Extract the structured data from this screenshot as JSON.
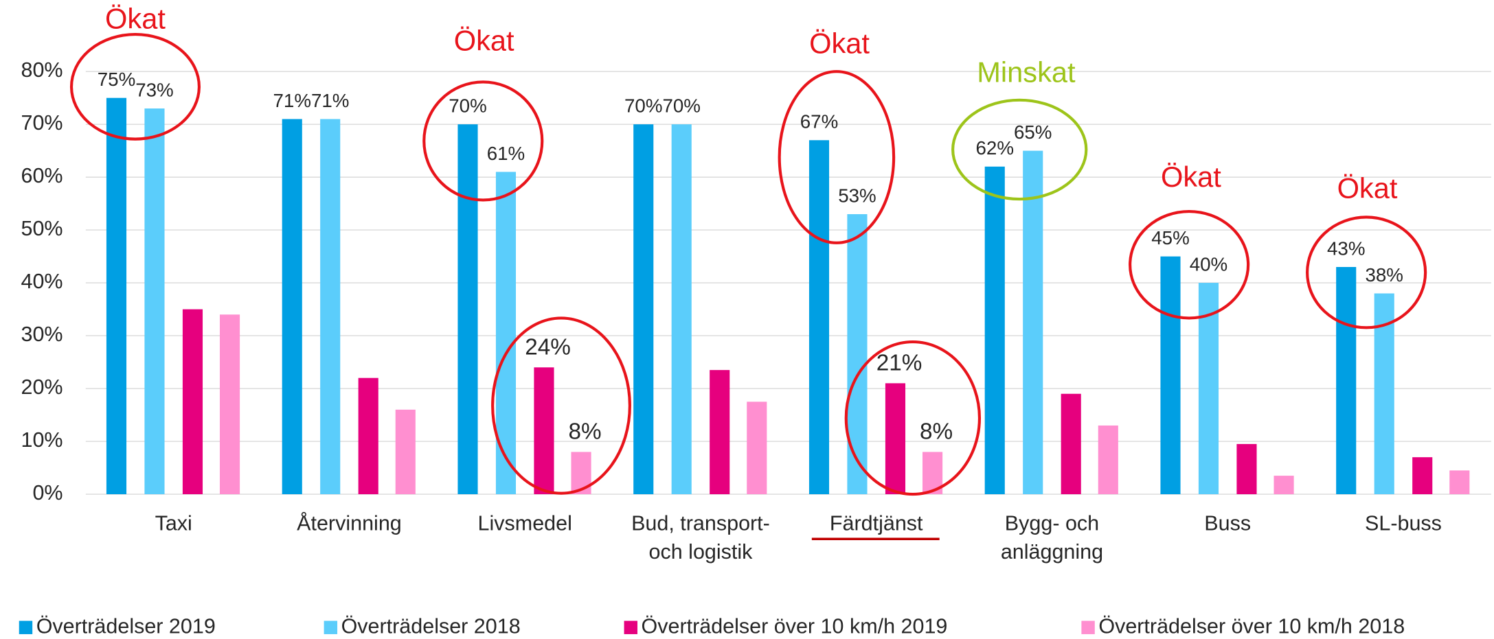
{
  "chart_data": {
    "type": "bar",
    "categories": [
      "Taxi",
      "Återvinning",
      "Livsmedel",
      "Bud, transport-\noch logistik",
      "Färdtjänst",
      "Bygg- och\nanläggning",
      "Buss",
      "SL-buss"
    ],
    "series": [
      {
        "name": "Överträdelser 2019",
        "color": "#009fe3",
        "values": [
          75,
          71,
          70,
          70,
          67,
          62,
          45,
          43
        ],
        "value_labels": [
          "75%",
          "71%",
          "70%",
          "70%",
          "67%",
          "62%",
          "45%",
          "43%"
        ]
      },
      {
        "name": "Överträdelser 2018",
        "color": "#5bcdfb",
        "values": [
          73,
          71,
          61,
          70,
          53,
          65,
          40,
          38
        ],
        "value_labels": [
          "73%",
          "71%",
          "61%",
          "70%",
          "53%",
          "65%",
          "40%",
          "38%"
        ]
      },
      {
        "name": "Överträdelser över 10 km/h 2019",
        "color": "#e6007e",
        "values": [
          35,
          22,
          24,
          23.5,
          21,
          19,
          9.5,
          7
        ],
        "value_labels": [
          null,
          null,
          "24%",
          null,
          "21%",
          null,
          null,
          null
        ]
      },
      {
        "name": "Överträdelser över 10 km/h 2018",
        "color": "#ff8fd0",
        "values": [
          34,
          16,
          8,
          17.5,
          8,
          13,
          3.5,
          4.5
        ],
        "value_labels": [
          null,
          null,
          "8%",
          null,
          "8%",
          null,
          null,
          null
        ]
      }
    ],
    "ylim": [
      0,
      80
    ],
    "yticks": [
      {
        "value": 0,
        "label": "0%"
      },
      {
        "value": 10,
        "label": "10%"
      },
      {
        "value": 20,
        "label": "20%"
      },
      {
        "value": 30,
        "label": "30%"
      },
      {
        "value": 40,
        "label": "40%"
      },
      {
        "value": 50,
        "label": "50%"
      },
      {
        "value": 60,
        "label": "60%"
      },
      {
        "value": 70,
        "label": "70%"
      },
      {
        "value": 80,
        "label": "80%"
      }
    ],
    "grid": true,
    "legend": "bottom",
    "annotations": [
      {
        "text": "Ökat",
        "color": "#e8141b"
      },
      {
        "text": "Ökat",
        "color": "#e8141b"
      },
      {
        "text": "Ökat",
        "color": "#e8141b"
      },
      {
        "text": "Minskat",
        "color": "#9dc41a"
      },
      {
        "text": "Ökat",
        "color": "#e8141b"
      },
      {
        "text": "Ökat",
        "color": "#e8141b"
      }
    ]
  }
}
